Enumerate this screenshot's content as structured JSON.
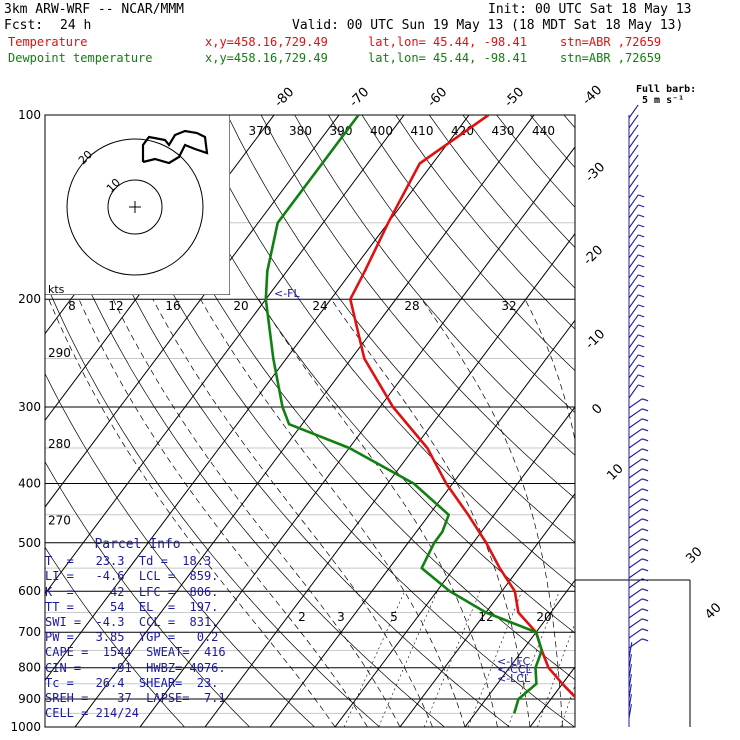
{
  "header": {
    "model": "3km ARW-WRF -- NCAR/MMM",
    "init": "Init: 00 UTC Sat 18 May 13",
    "fcst_label": "Fcst:",
    "fcst_hours": "24 h",
    "valid": "Valid: 00 UTC Sun 19 May 13 (18 MDT Sat 18 May 13)",
    "temp_label": "Temperature",
    "dew_label": "Dewpoint temperature",
    "xy": "x,y=458.16,729.49",
    "latlon": "lat,lon= 45.44, -98.41",
    "stn": "stn=ABR ,72659"
  },
  "colors": {
    "temperature": "#e01010",
    "dewpoint": "#108010",
    "parcel": "#1a1aa0",
    "axes": "#000000"
  },
  "barb_key": {
    "title": "Full barb:",
    "value": "5 m s⁻¹"
  },
  "hodograph": {
    "units": "kts",
    "ring_labels": [
      "10",
      "20"
    ]
  },
  "chart_data": {
    "type": "line",
    "title": "",
    "ylabel": "",
    "pressure_ticks": [
      100,
      200,
      300,
      400,
      500,
      600,
      700,
      800,
      900,
      1000
    ],
    "isotherm_labels": [
      "-80",
      "-70",
      "-60",
      "-50",
      "-40",
      "-30",
      "-20",
      "-10",
      "0",
      "10",
      "30",
      "40"
    ],
    "theta_labels": [
      "370",
      "380",
      "390",
      "400",
      "410",
      "420",
      "430",
      "440"
    ],
    "mixing_ratio_labels_upper": [
      "8",
      "12",
      "16",
      "20",
      "24",
      "28",
      "32"
    ],
    "mixing_ratio_labels_lower": [
      "2",
      "3",
      "5",
      "12",
      "20"
    ],
    "left_theta_labels": [
      {
        "p": 245,
        "label": "290"
      },
      {
        "p": 345,
        "label": "280"
      },
      {
        "p": 460,
        "label": "270"
      }
    ],
    "annotations": {
      "fl": "<-FL",
      "lfc": "<-LFC",
      "ccl": "<-CCL",
      "lcl": "<-LCL"
    },
    "series": [
      {
        "name": "Temperature",
        "points": [
          [
            100,
            -57
          ],
          [
            120,
            -62
          ],
          [
            150,
            -60
          ],
          [
            180,
            -58
          ],
          [
            200,
            -57
          ],
          [
            250,
            -48
          ],
          [
            300,
            -38
          ],
          [
            350,
            -28
          ],
          [
            400,
            -21
          ],
          [
            450,
            -14
          ],
          [
            500,
            -8
          ],
          [
            550,
            -3
          ],
          [
            600,
            2
          ],
          [
            650,
            5
          ],
          [
            700,
            10
          ],
          [
            750,
            13
          ],
          [
            800,
            16
          ],
          [
            850,
            20
          ],
          [
            900,
            24
          ],
          [
            950,
            27
          ]
        ]
      },
      {
        "name": "Dewpoint temperature",
        "points": [
          [
            100,
            -77
          ],
          [
            120,
            -77
          ],
          [
            150,
            -77
          ],
          [
            180,
            -73
          ],
          [
            200,
            -70
          ],
          [
            250,
            -62
          ],
          [
            300,
            -55
          ],
          [
            320,
            -52
          ],
          [
            350,
            -40
          ],
          [
            400,
            -26
          ],
          [
            450,
            -17
          ],
          [
            480,
            -16
          ],
          [
            500,
            -16
          ],
          [
            550,
            -15
          ],
          [
            600,
            -8
          ],
          [
            650,
            0
          ],
          [
            700,
            10
          ],
          [
            750,
            13
          ],
          [
            800,
            14
          ],
          [
            850,
            16
          ],
          [
            900,
            15
          ],
          [
            950,
            16
          ]
        ]
      }
    ]
  },
  "parcel_info": {
    "title": "Parcel Info",
    "rows": [
      "T  =   23.3  Td =  18.3",
      "LI =   -4.6  LCL =  859.",
      "K  =     42  LFC =  806.",
      "TT =     54  EL  =  197.",
      "SWI =  -4.3  CCL =  831.",
      "PW =   3.85  YGP =   0.2",
      "CAPE =  1544  SWEAT=  416",
      "CIN =    -91  HWBZ= 4076.",
      "Tc =   26.4  SHEAR=  23.",
      "SREH =    37  LAPSE=  7.1",
      "CELL = 214/24"
    ]
  }
}
